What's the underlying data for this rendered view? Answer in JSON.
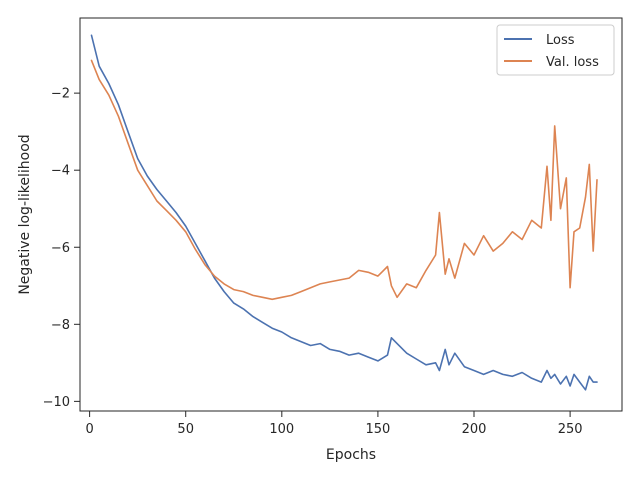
{
  "chart_data": {
    "type": "line",
    "title": "",
    "xlabel": "Epochs",
    "ylabel": "Negative log-likelihood",
    "xlim": [
      -5,
      277
    ],
    "ylim": [
      -10.25,
      -0.05
    ],
    "x_ticks": [
      0,
      50,
      100,
      150,
      200,
      250
    ],
    "x_tick_labels": [
      "0",
      "50",
      "100",
      "150",
      "200",
      "250"
    ],
    "y_ticks": [
      -10,
      -8,
      -6,
      -4,
      -2
    ],
    "y_tick_labels": [
      "−10",
      "−8",
      "−6",
      "−4",
      "−2"
    ],
    "grid": false,
    "legend_position": "top-right",
    "x": [
      1,
      5,
      10,
      15,
      20,
      25,
      30,
      35,
      40,
      45,
      50,
      55,
      60,
      65,
      70,
      75,
      80,
      85,
      90,
      95,
      100,
      105,
      110,
      115,
      120,
      125,
      130,
      135,
      140,
      145,
      150,
      155,
      157,
      160,
      165,
      170,
      175,
      180,
      182,
      185,
      187,
      190,
      195,
      200,
      205,
      210,
      215,
      220,
      225,
      230,
      235,
      238,
      240,
      242,
      245,
      248,
      250,
      252,
      255,
      258,
      260,
      262,
      264
    ],
    "series": [
      {
        "name": "Loss",
        "color": "#4c72b0",
        "values": [
          -0.5,
          -1.3,
          -1.75,
          -2.3,
          -3.0,
          -3.7,
          -4.15,
          -4.5,
          -4.8,
          -5.1,
          -5.45,
          -5.9,
          -6.35,
          -6.8,
          -7.15,
          -7.45,
          -7.6,
          -7.8,
          -7.95,
          -8.1,
          -8.2,
          -8.35,
          -8.45,
          -8.55,
          -8.5,
          -8.65,
          -8.7,
          -8.8,
          -8.75,
          -8.85,
          -8.95,
          -8.8,
          -8.35,
          -8.5,
          -8.75,
          -8.9,
          -9.05,
          -9.0,
          -9.2,
          -8.65,
          -9.05,
          -8.75,
          -9.1,
          -9.2,
          -9.3,
          -9.2,
          -9.3,
          -9.35,
          -9.25,
          -9.4,
          -9.5,
          -9.2,
          -9.4,
          -9.3,
          -9.55,
          -9.35,
          -9.6,
          -9.3,
          -9.5,
          -9.7,
          -9.35,
          -9.5,
          -9.5
        ]
      },
      {
        "name": "Val. loss",
        "color": "#dd8452",
        "values": [
          -1.15,
          -1.65,
          -2.05,
          -2.6,
          -3.3,
          -4.0,
          -4.4,
          -4.8,
          -5.05,
          -5.3,
          -5.6,
          -6.05,
          -6.45,
          -6.75,
          -6.95,
          -7.1,
          -7.15,
          -7.25,
          -7.3,
          -7.35,
          -7.3,
          -7.25,
          -7.15,
          -7.05,
          -6.95,
          -6.9,
          -6.85,
          -6.8,
          -6.6,
          -6.65,
          -6.75,
          -6.5,
          -7.0,
          -7.3,
          -6.95,
          -7.05,
          -6.6,
          -6.2,
          -5.1,
          -6.7,
          -6.3,
          -6.8,
          -5.9,
          -6.2,
          -5.7,
          -6.1,
          -5.9,
          -5.6,
          -5.8,
          -5.3,
          -5.5,
          -3.9,
          -5.3,
          -2.85,
          -5.0,
          -4.2,
          -7.05,
          -5.6,
          -5.5,
          -4.7,
          -3.85,
          -6.1,
          -4.25
        ]
      }
    ]
  }
}
